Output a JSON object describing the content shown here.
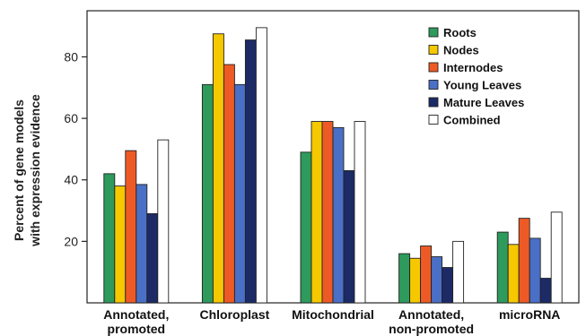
{
  "chart_data": {
    "type": "bar",
    "ylabel_lines": [
      "Percent of gene models",
      "with expression evidence"
    ],
    "categories": [
      [
        "Annotated,",
        "promoted"
      ],
      [
        "Chloroplast"
      ],
      [
        "Mitochondrial"
      ],
      [
        "Annotated,",
        "non-promoted"
      ],
      [
        "microRNA"
      ]
    ],
    "ylim": [
      0,
      95
    ],
    "yticks": [
      20,
      40,
      60,
      80
    ],
    "grid": false,
    "legend_position": "top-right",
    "series": [
      {
        "name": "Roots",
        "color": "#2e9a5c",
        "values": [
          42,
          71,
          49,
          16,
          23
        ]
      },
      {
        "name": "Nodes",
        "color": "#f5c800",
        "values": [
          38,
          87.5,
          59,
          14.5,
          19
        ]
      },
      {
        "name": "Internodes",
        "color": "#ee5a25",
        "values": [
          49.5,
          77.5,
          59,
          18.5,
          27.5
        ]
      },
      {
        "name": "Young Leaves",
        "color": "#4a6fc6",
        "values": [
          38.5,
          71,
          57,
          15,
          21
        ]
      },
      {
        "name": "Mature Leaves",
        "color": "#1c2a66",
        "values": [
          29,
          85.5,
          43,
          11.5,
          8
        ]
      },
      {
        "name": "Combined",
        "color": "#ffffff",
        "values": [
          53,
          89.5,
          59,
          20,
          29.5
        ]
      }
    ]
  }
}
